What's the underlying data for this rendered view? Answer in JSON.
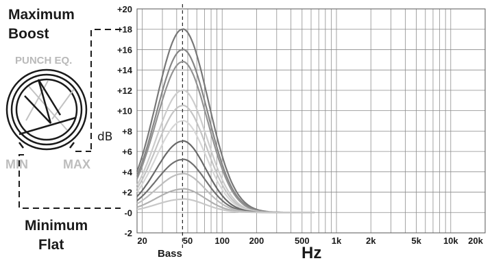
{
  "labels": {
    "max_line1": "Maximum",
    "max_line2": "Boost",
    "min_line1": "Minimum",
    "min_line2": "Flat",
    "knob_title": "PUNCH EQ.",
    "knob_min": "MIN",
    "knob_max": "MAX",
    "y_unit": "dB",
    "bass_marker": "Bass",
    "x_unit": "Hz"
  },
  "chart_data": {
    "type": "line",
    "x_scale": "log",
    "xlim": [
      18,
      20000
    ],
    "ylim": [
      -2,
      20
    ],
    "center_frequency_hz": 45,
    "grid": true,
    "y_ticks": [
      -2,
      0,
      2,
      4,
      6,
      8,
      10,
      12,
      14,
      16,
      18,
      20
    ],
    "y_tick_labels": [
      "-2",
      "-0",
      "+2",
      "+4",
      "+6",
      "+8",
      "+10",
      "+12",
      "+14",
      "+16",
      "+18",
      "+20"
    ],
    "x_ticks": [
      20,
      50,
      100,
      200,
      500,
      1000,
      2000,
      5000,
      10000,
      20000
    ],
    "x_tick_labels": [
      "20",
      "50",
      "100",
      "200",
      "500",
      "1k",
      "2k",
      "5k",
      "10k",
      "20k"
    ],
    "series": [
      {
        "peak_db": 18,
        "color": "#777777"
      },
      {
        "peak_db": 16,
        "color": "#858585"
      },
      {
        "peak_db": 14.8,
        "color": "#929292"
      },
      {
        "peak_db": 12,
        "color": "#cccccc"
      },
      {
        "peak_db": 10.5,
        "color": "#c4c4c4"
      },
      {
        "peak_db": 9,
        "color": "#d6d6d6"
      },
      {
        "peak_db": 7,
        "color": "#686868"
      },
      {
        "peak_db": 5.2,
        "color": "#707070"
      },
      {
        "peak_db": 3.8,
        "color": "#bdbdbd"
      },
      {
        "peak_db": 2.3,
        "color": "#b0b0b0"
      },
      {
        "peak_db": 1.3,
        "color": "#c8c8c8"
      }
    ]
  }
}
